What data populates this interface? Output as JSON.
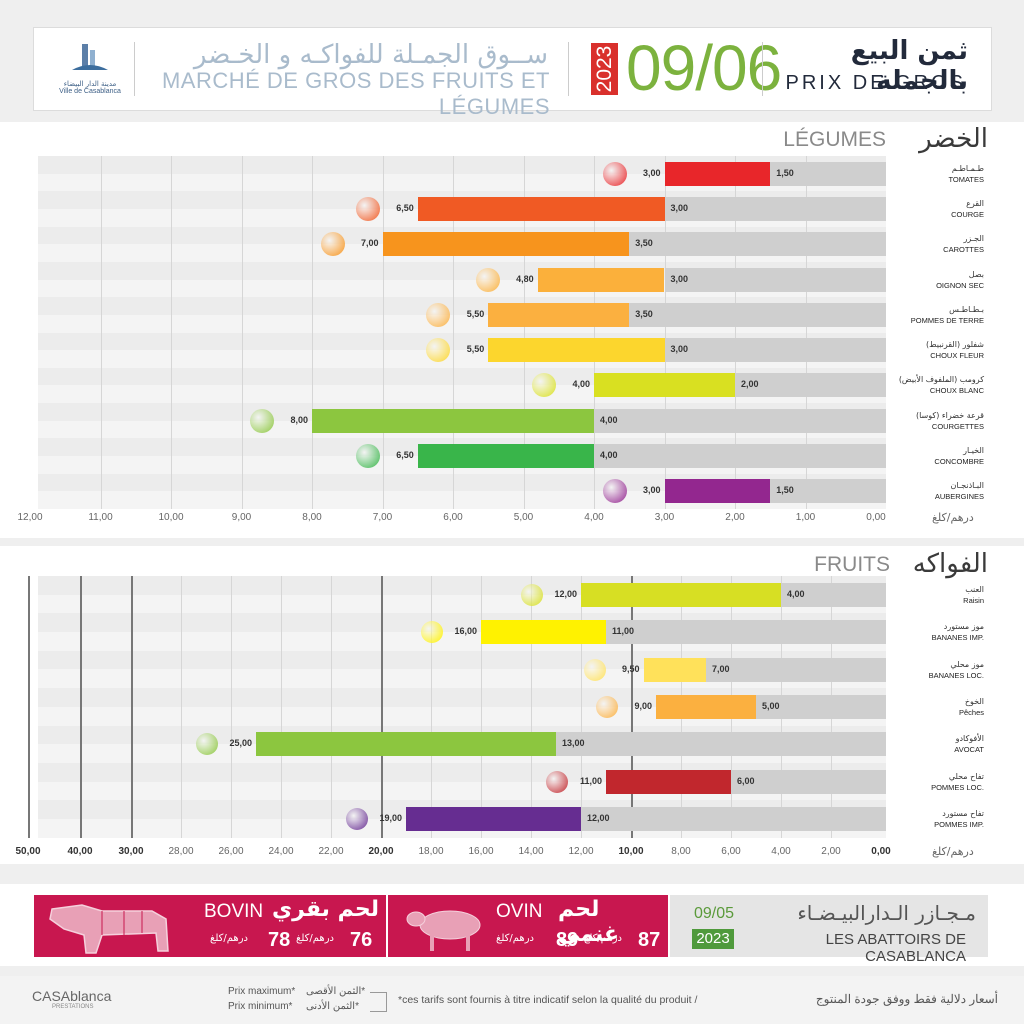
{
  "header": {
    "logo_city_ar": "مدينة الدار البيضاء",
    "logo_city_fr": "Ville de Casablanca",
    "market_ar": "ســوق الجمـلة للفواكـه و الخـضر",
    "market_fr": "MARCHÉ DE GROS DES FRUITS ET LÉGUMES",
    "year": "2023",
    "date": "09/06",
    "price_ar": "ثمن البيع بالجملة",
    "price_fr": "PRIX DE GROS"
  },
  "unit_label": "درهم/كلغ",
  "colors": {
    "max_bar_default": "#cfcfcf",
    "banner_red": "#c8174f",
    "date_green": "#7cb23e"
  },
  "chart_data": [
    {
      "type": "bar",
      "section_fr": "LÉGUMES",
      "section_ar": "الخضر",
      "xlim": [
        12,
        0
      ],
      "ticks": [
        "12,00",
        "11,00",
        "10,00",
        "9,00",
        "8,00",
        "7,00",
        "6,00",
        "5,00",
        "4,00",
        "3,00",
        "2,00",
        "1,00",
        "0,00"
      ],
      "series": [
        {
          "name": "Prix maximum"
        },
        {
          "name": "Prix minimum"
        }
      ],
      "items": [
        {
          "ar": "طـمـاطـم",
          "fr": "TOMATES",
          "max": 3.0,
          "min": 1.5,
          "max_label": "3,00",
          "min_label": "1,50",
          "color": "#e8262a",
          "icon": "tomato-icon"
        },
        {
          "ar": "القرع",
          "fr": "COURGE",
          "max": 6.5,
          "min": 3.0,
          "max_label": "6,50",
          "min_label": "3,00",
          "color": "#f05a24",
          "icon": "pumpkin-icon"
        },
        {
          "ar": "الجـزر",
          "fr": "CAROTTES",
          "max": 7.0,
          "min": 3.5,
          "max_label": "7,00",
          "min_label": "3,50",
          "color": "#f7941d",
          "icon": "carrot-icon"
        },
        {
          "ar": "بصل",
          "fr": "OIGNON SEC",
          "max": 4.8,
          "min": 3.0,
          "max_label": "4,80",
          "min_label": "3,00",
          "color": "#fbb03b",
          "icon": "onion-icon"
        },
        {
          "ar": "بـطـاطـس",
          "fr": "POMMES DE TERRE",
          "max": 5.5,
          "min": 3.5,
          "max_label": "5,50",
          "min_label": "3,50",
          "color": "#fbb040",
          "icon": "potato-icon"
        },
        {
          "ar": "شفلور (القرنبيط)",
          "fr": "CHOUX FLEUR",
          "max": 5.5,
          "min": 3.0,
          "max_label": "5,50",
          "min_label": "3,00",
          "color": "#fcd62d",
          "icon": "cauliflower-icon"
        },
        {
          "ar": "كرومب (الملفوف الأبيض)",
          "fr": "CHOUX BLANC",
          "max": 4.0,
          "min": 2.0,
          "max_label": "4,00",
          "min_label": "2,00",
          "color": "#d9e021",
          "icon": "cabbage-icon"
        },
        {
          "ar": "قرعة خضراء (كوسا)",
          "fr": "COURGETTES",
          "max": 8.0,
          "min": 4.0,
          "max_label": "8,00",
          "min_label": "4,00",
          "color": "#8cc63f",
          "icon": "zucchini-icon"
        },
        {
          "ar": "الخيـار",
          "fr": "CONCOMBRE",
          "max": 6.5,
          "min": 4.0,
          "max_label": "6,50",
          "min_label": "4,00",
          "color": "#39b54a",
          "icon": "cucumber-icon"
        },
        {
          "ar": "البـاذنجـان",
          "fr": "AUBERGINES",
          "max": 3.0,
          "min": 1.5,
          "max_label": "3,00",
          "min_label": "1,50",
          "color": "#93278f",
          "icon": "eggplant-icon"
        }
      ]
    },
    {
      "type": "bar",
      "section_fr": "FRUITS",
      "section_ar": "الفواكه",
      "xlim": [
        50,
        0
      ],
      "ticks": [
        "50,00",
        "40,00",
        "30,00",
        "28,00",
        "26,00",
        "24,00",
        "22,00",
        "20,00",
        "18,00",
        "16,00",
        "14,00",
        "12,00",
        "10,00",
        "8,00",
        "6,00",
        "4,00",
        "2,00",
        "0,00"
      ],
      "tick_values": [
        50,
        40,
        30,
        28,
        26,
        24,
        22,
        20,
        18,
        16,
        14,
        12,
        10,
        8,
        6,
        4,
        2,
        0
      ],
      "series": [
        {
          "name": "Prix maximum"
        },
        {
          "name": "Prix minimum"
        }
      ],
      "items": [
        {
          "ar": "العنب",
          "fr": "Raisin",
          "max": 12.0,
          "min": 4.0,
          "max_label": "12,00",
          "min_label": "4,00",
          "color": "#d7df23",
          "icon": "grapes-icon"
        },
        {
          "ar": "موز مستورد",
          "fr": "BANANES IMP.",
          "max": 16.0,
          "min": 11.0,
          "max_label": "16,00",
          "min_label": "11,00",
          "color": "#fff200",
          "icon": "bananas-icon"
        },
        {
          "ar": "موز محلي",
          "fr": "BANANES LOC.",
          "max": 9.5,
          "min": 7.0,
          "max_label": "9,50",
          "min_label": "7,00",
          "color": "#ffe15a",
          "icon": "banana-icon"
        },
        {
          "ar": "الخوخ",
          "fr": "Pêches",
          "max": 9.0,
          "min": 5.0,
          "max_label": "9,00",
          "min_label": "5,00",
          "color": "#fbb040",
          "icon": "peach-icon"
        },
        {
          "ar": "الأفوكادو",
          "fr": "AVOCAT",
          "max": 25.0,
          "min": 13.0,
          "max_label": "25,00",
          "min_label": "13,00",
          "color": "#8cc63f",
          "icon": "avocado-icon"
        },
        {
          "ar": "تفاح محلي",
          "fr": "POMMES LOC.",
          "max": 11.0,
          "min": 6.0,
          "max_label": "11,00",
          "min_label": "6,00",
          "color": "#c1272d",
          "icon": "apple-red-icon"
        },
        {
          "ar": "تفاح مستورد",
          "fr": "POMMES IMP.",
          "max": 19.0,
          "min": 12.0,
          "max_label": "19,00",
          "min_label": "12,00",
          "color": "#662d91",
          "icon": "apples-icon"
        }
      ]
    }
  ],
  "meat": {
    "bovin_fr": "BOVIN",
    "bovin_ar": "لحم بقري",
    "bovin_max": "76",
    "bovin_min": "78",
    "ovin_fr": "OVIN",
    "ovin_ar": "لحم غنمي",
    "ovin_max": "87",
    "ovin_min": "89",
    "unit": "درهم/كلغ",
    "abattoir_ar": "مـجـازر الـدارالبيـضـاء",
    "abattoir_fr": "LES ABATTOIRS DE CASABLANCA",
    "abattoir_date": "09/05",
    "abattoir_year": "2023"
  },
  "footer": {
    "logo": "CASAblanca",
    "logo_sub": "PRESTATIONS",
    "legend_max_fr": "Prix maximum*",
    "legend_min_fr": "Prix minimum*",
    "legend_max_ar": "الثمن الأقصى*",
    "legend_min_ar": "الثمن الأدنى*",
    "note_fr": "*ces tarifs sont fournis à titre indicatif selon la qualité du produit  /",
    "note_ar": "أسعار دلالية فقط ووفق جودة المنتوج"
  }
}
